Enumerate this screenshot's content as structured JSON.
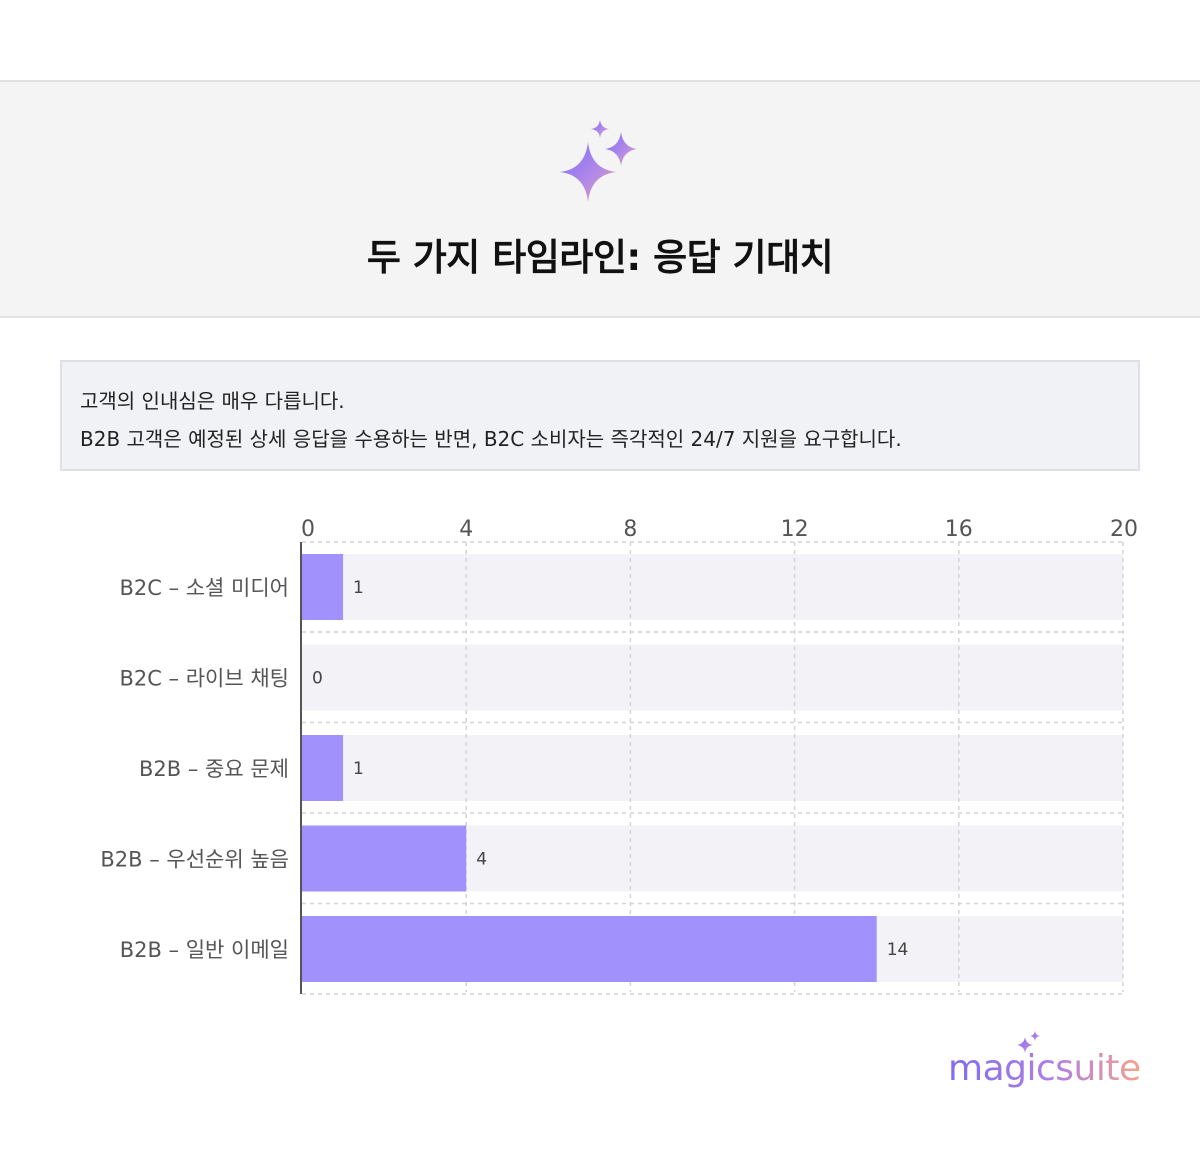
{
  "header": {
    "icon": "sparkle-icon",
    "title": "두 가지 타임라인: 응답 기대치"
  },
  "info": {
    "line1": "고객의 인내심은 매우 다릅니다.",
    "line2": "B2B 고객은 예정된 상세 응답을 수용하는 반면, B2C 소비자는 즉각적인 24/7 지원을 요구합니다."
  },
  "chart_data": {
    "type": "bar",
    "orientation": "horizontal",
    "categories": [
      "B2C – 소셜 미디어",
      "B2C – 라이브 채팅",
      "B2B – 중요 문제",
      "B2B – 우선순위 높음",
      "B2B – 일반 이메일"
    ],
    "values": [
      1,
      0,
      1,
      4,
      14
    ],
    "xlim": [
      0,
      20
    ],
    "xticks": [
      0,
      4,
      8,
      12,
      16,
      20
    ],
    "grid": true,
    "colors": {
      "bar": "#a091fc",
      "track": "#f2f2f7",
      "grid": "#d4d4d9"
    }
  },
  "logo": {
    "text": "magicsuite"
  }
}
